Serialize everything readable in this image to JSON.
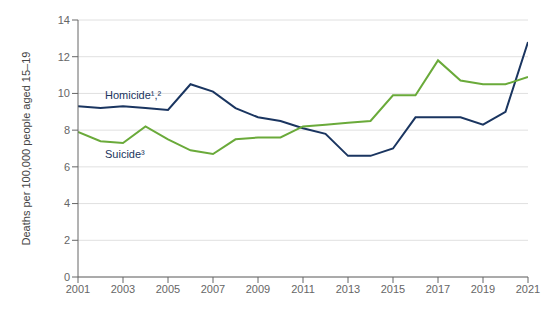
{
  "chart_data": {
    "type": "line",
    "x": [
      2001,
      2002,
      2003,
      2004,
      2005,
      2006,
      2007,
      2008,
      2009,
      2010,
      2011,
      2012,
      2013,
      2014,
      2015,
      2016,
      2017,
      2018,
      2019,
      2020,
      2021
    ],
    "series": [
      {
        "color": "#1a3560",
        "values": [
          9.3,
          9.2,
          9.3,
          9.2,
          9.1,
          10.5,
          10.1,
          9.2,
          8.7,
          8.5,
          8.1,
          7.8,
          6.6,
          6.6,
          7.0,
          8.7,
          8.7,
          8.7,
          8.3,
          9.0,
          12.8
        ]
      },
      {
        "color": "#6aaa3a",
        "values": [
          7.9,
          7.4,
          7.3,
          8.2,
          7.5,
          6.9,
          6.7,
          7.5,
          7.6,
          7.6,
          8.2,
          8.3,
          8.4,
          8.5,
          9.9,
          9.9,
          11.8,
          10.7,
          10.5,
          10.5,
          10.9
        ]
      }
    ],
    "xlim": [
      2001,
      2021
    ],
    "xticks": [
      2001,
      2003,
      2005,
      2007,
      2009,
      2011,
      2013,
      2015,
      2017,
      2019,
      2021
    ],
    "ylim": [
      0,
      14
    ],
    "yticks": [
      0,
      2,
      4,
      6,
      8,
      10,
      12,
      14
    ],
    "ylabel": "Deaths per 100,000 people aged 15–19",
    "annotations": [
      {
        "text": "Homicide¹,²",
        "x": 2002.2,
        "y": 9.6,
        "color": "#1a3560"
      },
      {
        "text": "Suicide³",
        "x": 2002.2,
        "y": 7.05,
        "color": "#1a3560"
      }
    ],
    "grid": true
  }
}
